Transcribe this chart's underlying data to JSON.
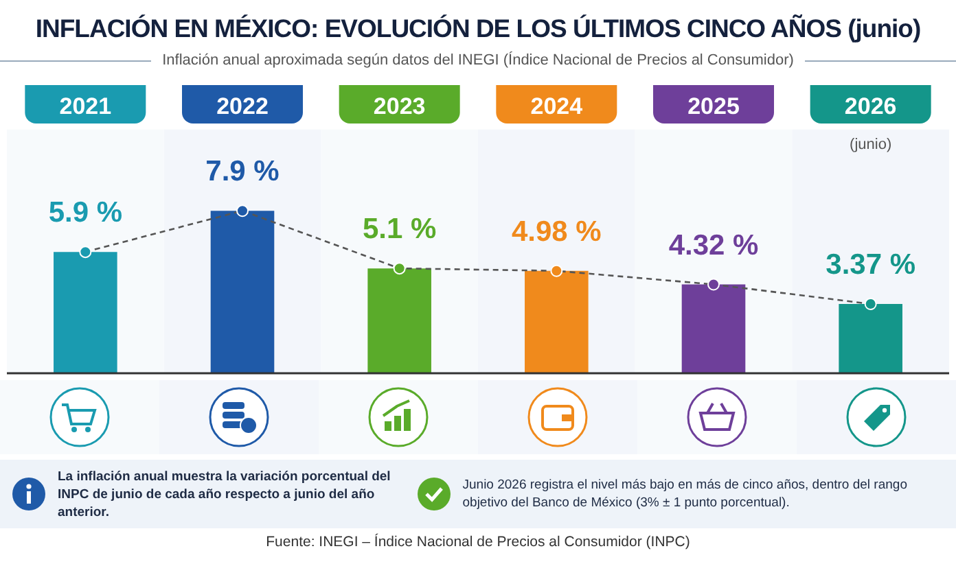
{
  "chart_data": {
    "type": "bar",
    "title": "INFLACIÓN EN MÉXICO: EVOLUCIÓN DE LOS ÚLTIMOS CINCO AÑOS (junio)",
    "subtitle": "Inflación anual aproximada según datos del INEGI (Índice Nacional de Precios al Consumidor)",
    "categories": [
      "2021",
      "2022",
      "2023",
      "2024",
      "2025",
      "2026"
    ],
    "series": [
      {
        "colors": [
          "#1a9bb0",
          "#1f5aa8",
          "#5aab2a",
          "#f08a1c",
          "#6e3f9a",
          "#14968a"
        ],
        "values": [
          5.9,
          7.9,
          5.1,
          4.98,
          4.32,
          3.37
        ],
        "value_labels": [
          "5.9 %",
          "7.9 %",
          "5.1 %",
          "4.98 %",
          "4.32 %",
          "3.37 %"
        ]
      },
      {
        "type": "line",
        "color": "#555555",
        "colors": [
          "#1a9bb0",
          "#1f5aa8",
          "#5aab2a",
          "#f08a1c",
          "#6e3f9a",
          "#14968a"
        ],
        "values": [
          5.9,
          7.9,
          5.1,
          4.98,
          4.32,
          3.37
        ],
        "line_style": "dashed",
        "marker": "circle"
      }
    ],
    "annotations": [
      "(junio)",
      "La inflación anual muestra la variación porcentual del INPC de junio de cada año respecto a junio del año anterior.",
      "Junio 2026 registra el nivel más bajo en más de cinco años, dentro del rango objetivo del Banco de México (3% ± 1 punto porcentual).",
      "Fuente: INEGI – Índice Nacional de Precios al Consumidor (INPC)"
    ],
    "legend": false,
    "grid": false
  }
}
